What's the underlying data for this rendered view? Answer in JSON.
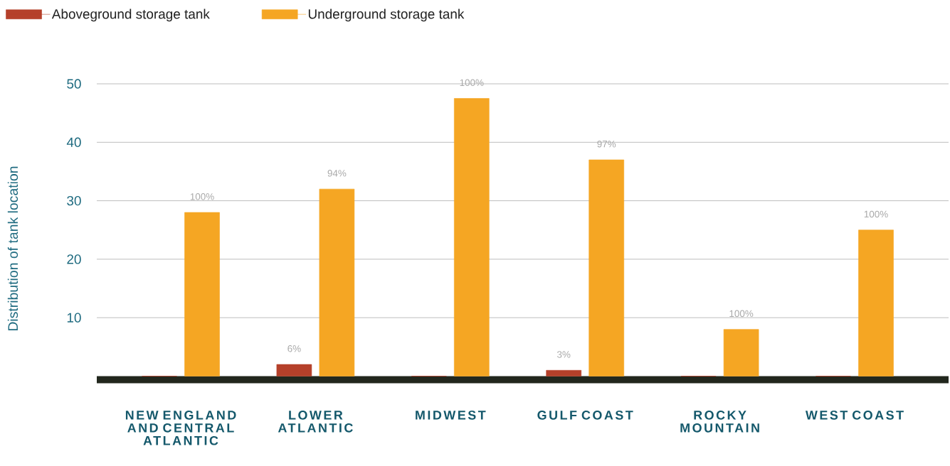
{
  "chart_data": {
    "type": "bar",
    "ylabel": "Distribution of tank location",
    "categories": [
      "NEW ENGLAND AND CENTRAL ATLANTIC",
      "LOWER ATLANTIC",
      "MIDWEST",
      "GULF COAST",
      "ROCKY MOUNTAIN",
      "WEST COAST"
    ],
    "series": [
      {
        "name": "Aboveground storage tank",
        "color": "#b5402a",
        "values": [
          0,
          2,
          0,
          1,
          0,
          0
        ]
      },
      {
        "name": "Underground storage tank",
        "color": "#f5a623",
        "values": [
          28,
          32,
          47.5,
          37,
          8,
          25
        ]
      }
    ],
    "annotations": [
      "100%",
      "6%",
      "94%",
      "100%",
      "3%",
      "97%",
      "100%",
      "100%"
    ],
    "ylim": [
      0,
      50
    ],
    "yticks": [
      10,
      20,
      30,
      40,
      50
    ],
    "grid": "y",
    "legend": "top left"
  }
}
